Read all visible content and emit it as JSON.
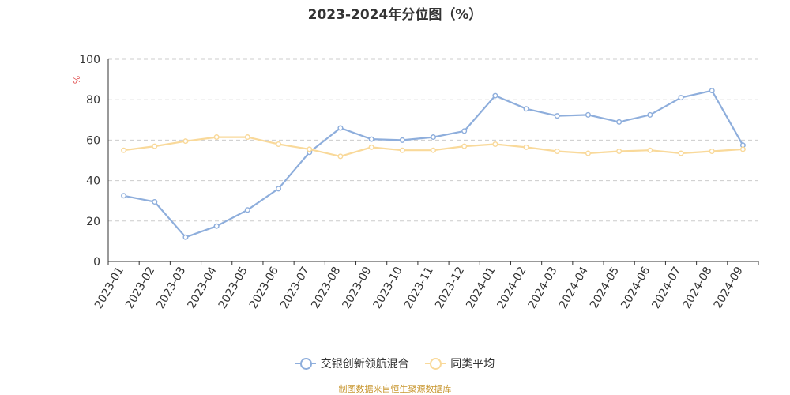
{
  "chart_data": {
    "type": "line",
    "title": "2023-2024年分位图（%）",
    "ylabel": "%",
    "ylim": [
      0,
      100
    ],
    "yticks": [
      0,
      20,
      40,
      60,
      80,
      100
    ],
    "grid": true,
    "legend_position": "bottom",
    "categories": [
      "2023-01",
      "2023-02",
      "2023-03",
      "2023-04",
      "2023-05",
      "2023-06",
      "2023-07",
      "2023-08",
      "2023-09",
      "2023-10",
      "2023-11",
      "2023-12",
      "2024-01",
      "2024-02",
      "2024-03",
      "2024-04",
      "2024-05",
      "2024-06",
      "2024-07",
      "2024-08",
      "2024-09"
    ],
    "series": [
      {
        "name": "交银创新领航混合",
        "color": "#8eaedc",
        "values": [
          32.5,
          29.5,
          12.0,
          17.5,
          25.5,
          36.0,
          54.0,
          66.0,
          60.5,
          60.0,
          61.5,
          64.5,
          82.0,
          75.5,
          72.0,
          72.5,
          69.0,
          72.5,
          81.0,
          84.5,
          57.5
        ]
      },
      {
        "name": "同类平均",
        "color": "#f9d99a",
        "values": [
          55.0,
          57.0,
          59.5,
          61.5,
          61.5,
          58.0,
          55.5,
          52.0,
          56.5,
          55.0,
          55.0,
          57.0,
          58.0,
          56.5,
          54.5,
          53.5,
          54.5,
          55.0,
          53.5,
          54.5,
          55.5
        ]
      }
    ]
  },
  "footer": {
    "source": "制图数据来自恒生聚源数据库"
  }
}
